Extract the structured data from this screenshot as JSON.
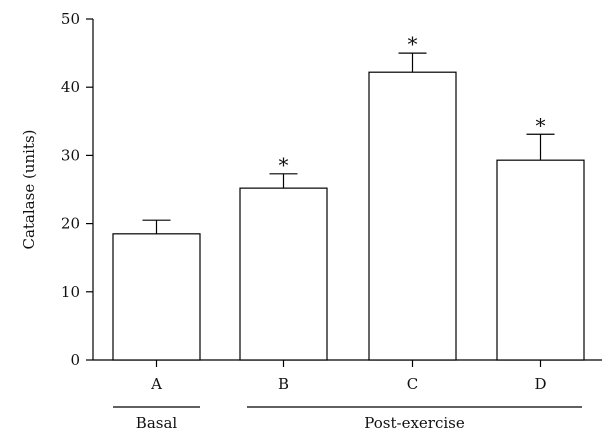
{
  "chart_data": {
    "type": "bar",
    "ylabel": "Catalase (units)",
    "xlabel": "",
    "ylim": [
      0,
      50
    ],
    "yticks": [
      0,
      10,
      20,
      30,
      40,
      50
    ],
    "categories": [
      "A",
      "B",
      "C",
      "D"
    ],
    "values": [
      18.5,
      25.2,
      42.2,
      29.3
    ],
    "errors": [
      2.0,
      2.1,
      2.8,
      3.8
    ],
    "significance": [
      "",
      "*",
      "*",
      "*"
    ],
    "groups": [
      {
        "label": "Basal",
        "categories": [
          "A"
        ]
      },
      {
        "label": "Post-exercise",
        "categories": [
          "B",
          "C",
          "D"
        ]
      }
    ],
    "grid": false,
    "legend": "none"
  }
}
